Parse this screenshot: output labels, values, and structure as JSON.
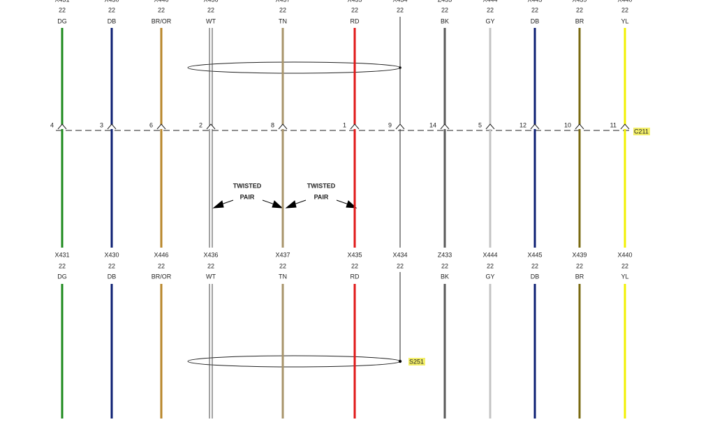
{
  "connector": "C211",
  "splice": "S251",
  "annotations": [
    {
      "line1": "TWISTED",
      "line2": "PAIR"
    },
    {
      "line1": "TWISTED",
      "line2": "PAIR"
    }
  ],
  "wires": [
    {
      "circuit": "X431",
      "gauge": "22",
      "color": "DG",
      "pin": "4"
    },
    {
      "circuit": "X430",
      "gauge": "22",
      "color": "DB",
      "pin": "3"
    },
    {
      "circuit": "X446",
      "gauge": "22",
      "color": "BR/OR",
      "pin": "6"
    },
    {
      "circuit": "X436",
      "gauge": "22",
      "color": "WT",
      "pin": "2"
    },
    {
      "circuit": "X437",
      "gauge": "22",
      "color": "TN",
      "pin": "8"
    },
    {
      "circuit": "X435",
      "gauge": "22",
      "color": "RD",
      "pin": "1"
    },
    {
      "circuit": "X434",
      "gauge": "22",
      "color": null,
      "pin": "9"
    },
    {
      "circuit": "Z433",
      "gauge": "22",
      "color": "BK",
      "pin": "14"
    },
    {
      "circuit": "X444",
      "gauge": "22",
      "color": "GY",
      "pin": "5"
    },
    {
      "circuit": "X445",
      "gauge": "22",
      "color": "DB",
      "pin": "12"
    },
    {
      "circuit": "X439",
      "gauge": "22",
      "color": "BR",
      "pin": "10"
    },
    {
      "circuit": "X440",
      "gauge": "22",
      "color": "YL",
      "pin": "11"
    }
  ]
}
